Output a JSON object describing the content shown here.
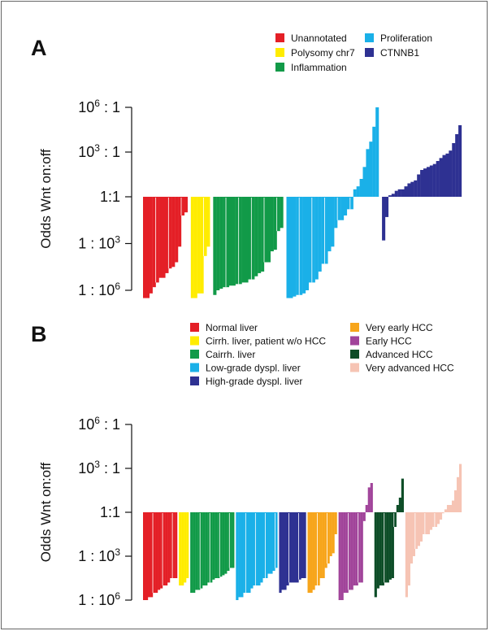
{
  "chart_data": [
    {
      "panel": "A",
      "type": "bar",
      "ylabel": "Odds Wnt on:off",
      "yticks": [
        {
          "value": 6,
          "base": "10",
          "exp": "6",
          "suffix": " : 1"
        },
        {
          "value": 3,
          "base": "10",
          "exp": "3",
          "suffix": " : 1"
        },
        {
          "value": 0,
          "base": "1:1",
          "exp": "",
          "suffix": ""
        },
        {
          "value": -3,
          "base": "1 : 10",
          "exp": "3",
          "suffix": ""
        },
        {
          "value": -6,
          "base": "1 : 10",
          "exp": "6",
          "suffix": ""
        }
      ],
      "ylim": [
        -6.6,
        6.5
      ],
      "value_scale": "log10 odds",
      "legend": [
        {
          "label": "Unannotated",
          "color": "#e41f26"
        },
        {
          "label": "Polysomy chr7",
          "color": "#ffec00"
        },
        {
          "label": "Inflammation",
          "color": "#119a48"
        },
        {
          "label": "Proliferation",
          "color": "#1ab0e8"
        },
        {
          "label": "CTNNB1",
          "color": "#2e3192"
        }
      ],
      "series": [
        {
          "name": "Unannotated",
          "color": "#e41f26",
          "values": [
            -6.5,
            -6.5,
            -6.2,
            -5.8,
            -5.5,
            -5.2,
            -5.2,
            -4.9,
            -4.6,
            -4.5,
            -4.2,
            -3.2,
            -1.2,
            -1.0
          ]
        },
        {
          "name": "Polysomy chr7",
          "color": "#ffec00",
          "values": [
            -6.5,
            -6.5,
            -6.2,
            -6.2,
            -3.8,
            -3.2
          ]
        },
        {
          "name": "Inflammation",
          "color": "#119a48",
          "values": [
            -6.3,
            -6.0,
            -5.9,
            -5.8,
            -5.8,
            -5.7,
            -5.7,
            -5.6,
            -5.6,
            -5.5,
            -5.5,
            -5.3,
            -5.3,
            -5.1,
            -4.9,
            -4.8,
            -4.2,
            -4.2,
            -3.5,
            -3.4,
            -2.2,
            -2.0
          ]
        },
        {
          "name": "Proliferation",
          "color": "#1ab0e8",
          "values": [
            -6.5,
            -6.5,
            -6.4,
            -6.3,
            -6.3,
            -6.2,
            -6.0,
            -5.5,
            -5.5,
            -5.3,
            -4.8,
            -4.3,
            -4.3,
            -3.5,
            -3.2,
            -2.0,
            -1.5,
            -1.5,
            -1.2,
            -0.8,
            -0.8,
            0.5,
            0.7,
            1.2,
            2.0,
            3.2,
            3.7,
            4.7,
            6.0
          ]
        },
        {
          "name": "CTNNB1",
          "color": "#2e3192",
          "values": [
            -2.8,
            -1.3,
            0.1,
            0.2,
            0.4,
            0.5,
            0.5,
            0.7,
            0.9,
            1.0,
            1.1,
            1.5,
            1.8,
            1.9,
            2.0,
            2.1,
            2.2,
            2.4,
            2.6,
            2.8,
            2.9,
            3.1,
            3.6,
            4.2,
            4.8
          ]
        }
      ]
    },
    {
      "panel": "B",
      "type": "bar",
      "ylabel": "Odds Wnt on:off",
      "yticks": [
        {
          "value": 6,
          "base": "10",
          "exp": "6",
          "suffix": " : 1"
        },
        {
          "value": 3,
          "base": "10",
          "exp": "3",
          "suffix": " : 1"
        },
        {
          "value": 0,
          "base": "1:1",
          "exp": "",
          "suffix": ""
        },
        {
          "value": -3,
          "base": "1 : 10",
          "exp": "3",
          "suffix": ""
        },
        {
          "value": -6,
          "base": "1 : 10",
          "exp": "6",
          "suffix": ""
        }
      ],
      "ylim": [
        -6.6,
        6.5
      ],
      "value_scale": "log10 odds",
      "legend": [
        {
          "label": "Normal liver",
          "color": "#e41f26"
        },
        {
          "label": "Cirrh. liver, patient w/o HCC",
          "color": "#ffec00"
        },
        {
          "label": "Cairrh. liver",
          "color": "#119a48"
        },
        {
          "label": "Low-grade dyspl. liver",
          "color": "#1ab0e8"
        },
        {
          "label": "High-grade dyspl. liver",
          "color": "#2e3192"
        },
        {
          "label": "Very early HCC",
          "color": "#f7a51b"
        },
        {
          "label": "Early HCC",
          "color": "#a1449a"
        },
        {
          "label": "Advanced HCC",
          "color": "#0d4d27"
        },
        {
          "label": "Very advanced HCC",
          "color": "#f6c4b4"
        }
      ],
      "series": [
        {
          "name": "Normal liver",
          "color": "#e41f26",
          "values": [
            -6.0,
            -6.0,
            -5.8,
            -5.8,
            -5.5,
            -5.5,
            -5.3,
            -5.2,
            -5.0,
            -5.0,
            -4.8,
            -4.5,
            -4.5,
            -4.5
          ]
        },
        {
          "name": "Cirrh. liver, patient w/o HCC",
          "color": "#ffec00",
          "values": [
            -5.0,
            -5.0,
            -4.8,
            -4.5
          ]
        },
        {
          "name": "Cairrh. liver",
          "color": "#119a48",
          "values": [
            -5.5,
            -5.5,
            -5.3,
            -5.3,
            -5.2,
            -5.0,
            -5.0,
            -4.8,
            -4.8,
            -4.6,
            -4.5,
            -4.5,
            -4.4,
            -4.3,
            -4.2,
            -4.0,
            -3.8,
            -3.8
          ]
        },
        {
          "name": "Low-grade dyspl. liver",
          "color": "#1ab0e8",
          "values": [
            -6.0,
            -5.8,
            -5.8,
            -5.5,
            -5.5,
            -5.5,
            -5.2,
            -5.0,
            -5.0,
            -5.0,
            -4.8,
            -4.5,
            -4.5,
            -4.2,
            -4.2,
            -4.0,
            -3.8
          ]
        },
        {
          "name": "High-grade dyspl. liver",
          "color": "#2e3192",
          "values": [
            -5.5,
            -5.3,
            -5.3,
            -5.0,
            -4.8,
            -4.8,
            -4.8,
            -4.8,
            -4.6,
            -4.5,
            -4.5
          ]
        },
        {
          "name": "Very early HCC",
          "color": "#f7a51b",
          "values": [
            -5.5,
            -5.5,
            -5.3,
            -5.0,
            -5.0,
            -4.5,
            -4.5,
            -3.8,
            -3.5,
            -3.0,
            -2.8,
            -1.5
          ]
        },
        {
          "name": "Early HCC",
          "color": "#a1449a",
          "values": [
            -6.0,
            -6.0,
            -5.5,
            -5.5,
            -5.3,
            -5.3,
            -5.0,
            -5.0,
            -4.8,
            -4.8,
            -0.6,
            0.5,
            1.7,
            2.0
          ]
        },
        {
          "name": "Advanced HCC",
          "color": "#0d4d27",
          "values": [
            -5.8,
            -5.2,
            -5.0,
            -5.0,
            -4.8,
            -4.8,
            -4.6,
            -4.5,
            -1.0,
            0.5,
            1.0,
            2.3
          ]
        },
        {
          "name": "Very advanced HCC",
          "color": "#f6c4b4",
          "values": [
            -5.8,
            -5.0,
            -3.5,
            -3.0,
            -2.5,
            -2.3,
            -2.0,
            -1.5,
            -1.5,
            -1.5,
            -1.2,
            -1.0,
            -1.0,
            -0.8,
            -0.5,
            0.0,
            0.2,
            0.5,
            0.5,
            0.8,
            1.5,
            2.4,
            3.3
          ]
        }
      ]
    }
  ]
}
